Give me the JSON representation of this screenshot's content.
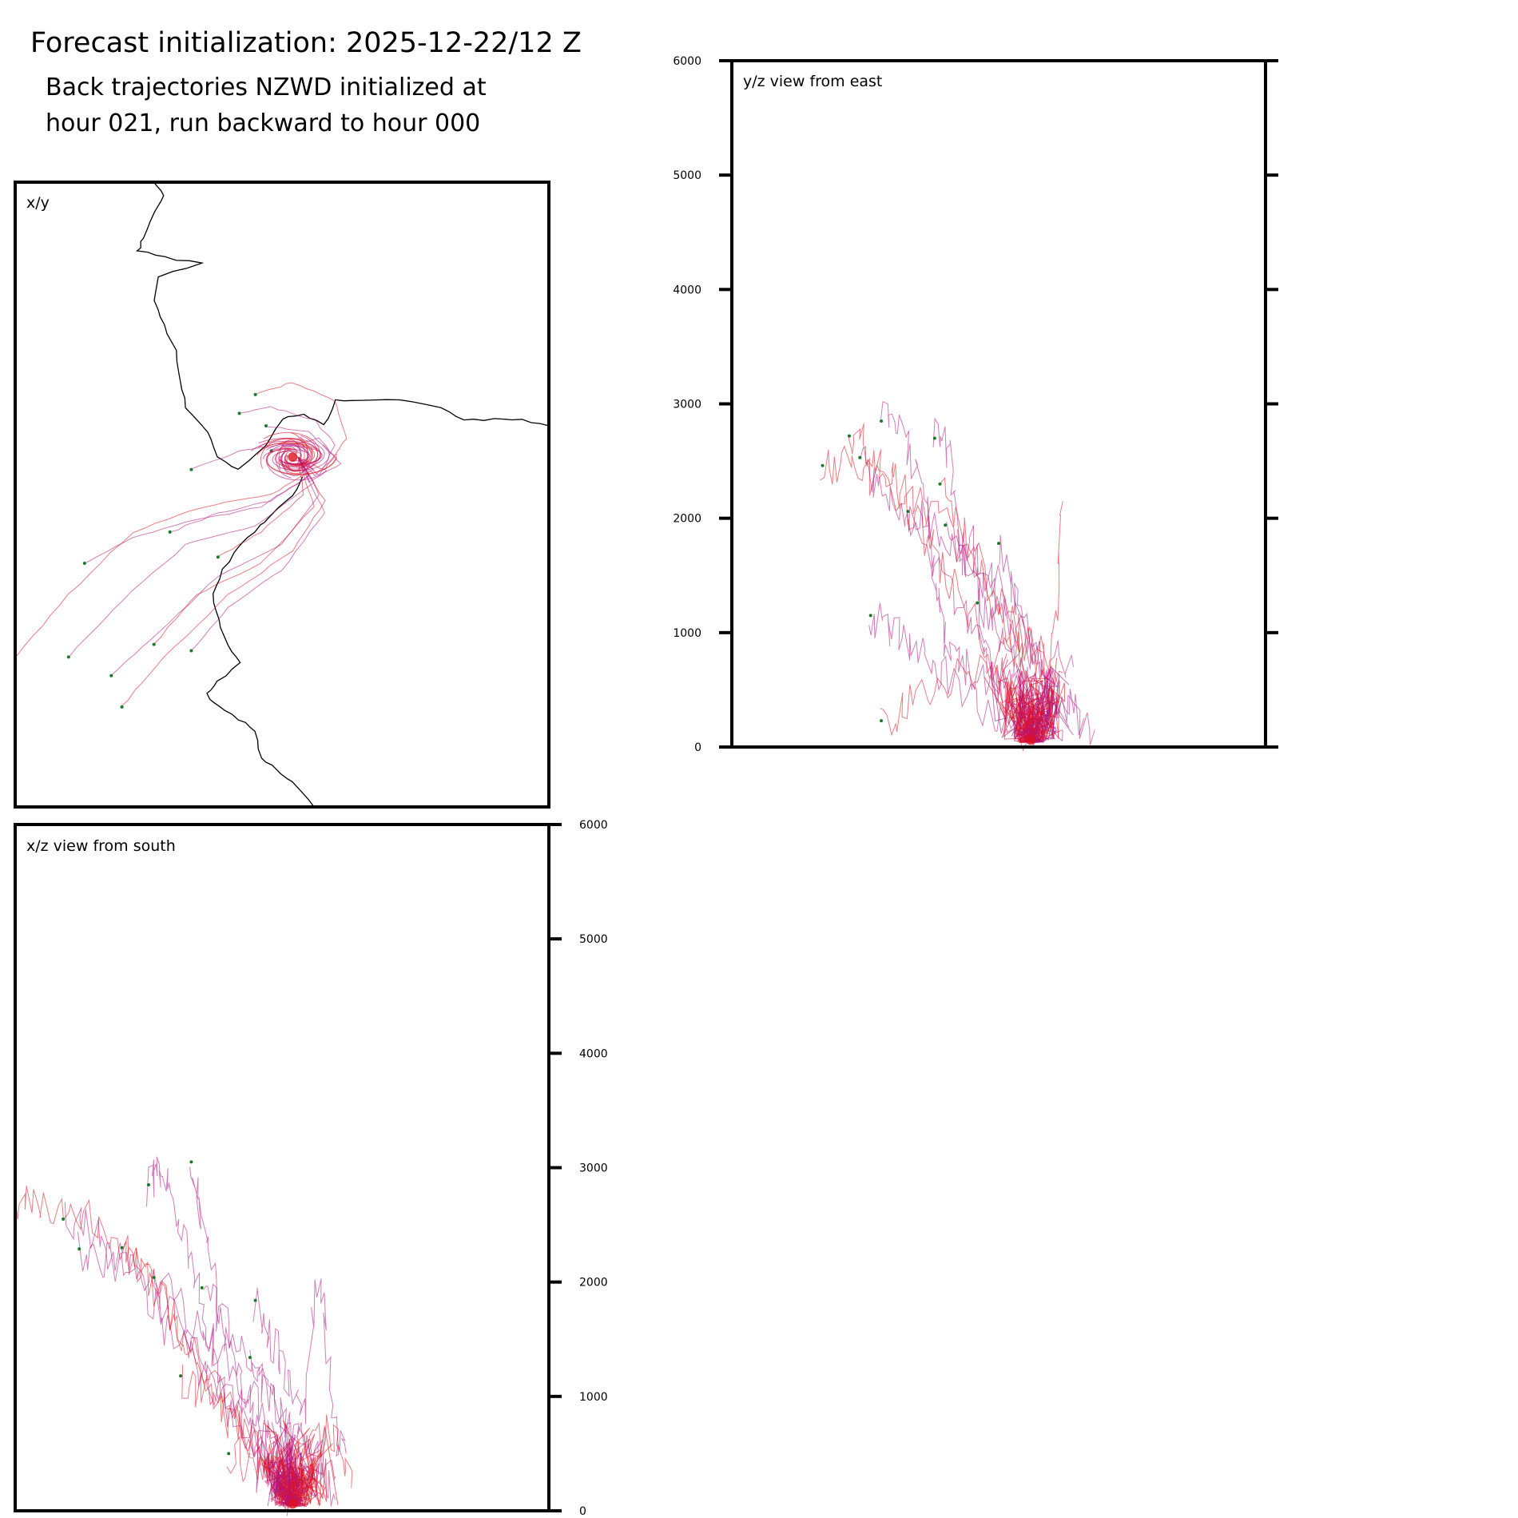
{
  "figure": {
    "title": "Forecast initialization: 2025-12-22/12 Z",
    "subtitle_line1": "Back trajectories NZWD initialized at",
    "subtitle_line2": "hour 021, run backward to hour 000",
    "colors": {
      "trajectory_primary": "#e0101e",
      "trajectory_secondary": "#b01480",
      "start_marker": "#1a7a2a",
      "axes": "#000000",
      "coastline": "#000000"
    }
  },
  "chart_data": [
    {
      "type": "line",
      "panel": "xy",
      "label": "x/y",
      "description_units": "map view",
      "source_point": [
        0.52,
        0.44
      ],
      "series": [
        {
          "name": "trajectory-1",
          "points": [
            [
              0.0,
              0.76
            ],
            [
              0.1,
              0.66
            ],
            [
              0.22,
              0.56
            ],
            [
              0.35,
              0.52
            ],
            [
              0.48,
              0.5
            ],
            [
              0.56,
              0.46
            ],
            [
              0.53,
              0.44
            ]
          ]
        },
        {
          "name": "trajectory-2",
          "points": [
            [
              0.1,
              0.76
            ],
            [
              0.2,
              0.67
            ],
            [
              0.32,
              0.58
            ],
            [
              0.45,
              0.55
            ],
            [
              0.56,
              0.48
            ],
            [
              0.53,
              0.44
            ]
          ]
        },
        {
          "name": "trajectory-3",
          "points": [
            [
              0.18,
              0.79
            ],
            [
              0.27,
              0.72
            ],
            [
              0.38,
              0.63
            ],
            [
              0.5,
              0.58
            ],
            [
              0.57,
              0.5
            ],
            [
              0.53,
              0.44
            ]
          ]
        },
        {
          "name": "trajectory-4",
          "points": [
            [
              0.2,
              0.84
            ],
            [
              0.28,
              0.76
            ],
            [
              0.4,
              0.66
            ],
            [
              0.52,
              0.59
            ],
            [
              0.58,
              0.51
            ],
            [
              0.53,
              0.44
            ]
          ]
        },
        {
          "name": "trajectory-5",
          "points": [
            [
              0.13,
              0.61
            ],
            [
              0.22,
              0.57
            ],
            [
              0.34,
              0.54
            ],
            [
              0.46,
              0.52
            ],
            [
              0.55,
              0.47
            ],
            [
              0.53,
              0.44
            ]
          ]
        },
        {
          "name": "trajectory-6",
          "points": [
            [
              0.29,
              0.56
            ],
            [
              0.38,
              0.53
            ],
            [
              0.48,
              0.51
            ],
            [
              0.55,
              0.47
            ],
            [
              0.53,
              0.44
            ]
          ]
        },
        {
          "name": "trajectory-7",
          "points": [
            [
              0.26,
              0.74
            ],
            [
              0.34,
              0.66
            ],
            [
              0.46,
              0.61
            ],
            [
              0.56,
              0.52
            ],
            [
              0.53,
              0.44
            ]
          ]
        },
        {
          "name": "trajectory-8",
          "points": [
            [
              0.33,
              0.75
            ],
            [
              0.4,
              0.68
            ],
            [
              0.5,
              0.62
            ],
            [
              0.58,
              0.53
            ],
            [
              0.53,
              0.44
            ]
          ]
        },
        {
          "name": "trajectory-9",
          "points": [
            [
              0.42,
              0.37
            ],
            [
              0.48,
              0.36
            ],
            [
              0.56,
              0.38
            ],
            [
              0.6,
              0.42
            ],
            [
              0.57,
              0.47
            ],
            [
              0.53,
              0.44
            ]
          ]
        },
        {
          "name": "trajectory-10",
          "points": [
            [
              0.45,
              0.34
            ],
            [
              0.52,
              0.32
            ],
            [
              0.6,
              0.35
            ],
            [
              0.62,
              0.41
            ],
            [
              0.58,
              0.46
            ],
            [
              0.53,
              0.44
            ]
          ]
        },
        {
          "name": "trajectory-11",
          "points": [
            [
              0.33,
              0.46
            ],
            [
              0.42,
              0.43
            ],
            [
              0.5,
              0.42
            ],
            [
              0.53,
              0.44
            ]
          ]
        },
        {
          "name": "trajectory-12",
          "points": [
            [
              0.47,
              0.39
            ],
            [
              0.55,
              0.4
            ],
            [
              0.6,
              0.44
            ],
            [
              0.56,
              0.47
            ],
            [
              0.53,
              0.44
            ]
          ]
        },
        {
          "name": "trajectory-13",
          "points": [
            [
              0.38,
              0.6
            ],
            [
              0.46,
              0.56
            ],
            [
              0.54,
              0.5
            ],
            [
              0.53,
              0.44
            ]
          ]
        },
        {
          "name": "trajectory-14",
          "points": [
            [
              0.48,
              0.43
            ],
            [
              0.57,
              0.41
            ],
            [
              0.61,
              0.45
            ],
            [
              0.55,
              0.48
            ],
            [
              0.53,
              0.44
            ]
          ]
        }
      ]
    },
    {
      "type": "line",
      "panel": "yz",
      "label": "y/z view from east",
      "ylim": [
        0,
        6000
      ],
      "yticks": [
        0,
        1000,
        2000,
        3000,
        4000,
        5000,
        6000
      ],
      "series": [
        {
          "name": "trajectory-1",
          "x": [
            0.17,
            0.22,
            0.28,
            0.36,
            0.44,
            0.5,
            0.55,
            0.57
          ],
          "y": [
            2460,
            2450,
            2300,
            2100,
            1700,
            1200,
            600,
            100
          ]
        },
        {
          "name": "trajectory-2",
          "x": [
            0.24,
            0.28,
            0.33,
            0.4,
            0.45,
            0.52,
            0.57
          ],
          "y": [
            2530,
            2300,
            1900,
            1500,
            1000,
            500,
            80
          ]
        },
        {
          "name": "trajectory-3",
          "x": [
            0.28,
            0.32,
            0.36,
            0.38,
            0.4,
            0.44,
            0.5,
            0.56
          ],
          "y": [
            2850,
            2700,
            2200,
            1500,
            900,
            700,
            400,
            60
          ]
        },
        {
          "name": "trajectory-4",
          "x": [
            0.22,
            0.26,
            0.3,
            0.33,
            0.38,
            0.44,
            0.5,
            0.56
          ],
          "y": [
            2720,
            2600,
            2400,
            2100,
            1700,
            1200,
            600,
            80
          ]
        },
        {
          "name": "trajectory-5",
          "x": [
            0.38,
            0.41,
            0.43,
            0.45,
            0.47,
            0.5,
            0.55
          ],
          "y": [
            2700,
            2600,
            1500,
            1900,
            900,
            500,
            100
          ]
        },
        {
          "name": "trajectory-6",
          "x": [
            0.26,
            0.3,
            0.35,
            0.4,
            0.48,
            0.57
          ],
          "y": [
            1150,
            980,
            800,
            600,
            300,
            90
          ]
        },
        {
          "name": "trajectory-7",
          "x": [
            0.39,
            0.44,
            0.5,
            0.55,
            0.6,
            0.62
          ],
          "y": [
            2300,
            1800,
            1300,
            900,
            700,
            2150
          ]
        },
        {
          "name": "trajectory-8",
          "x": [
            0.33,
            0.38,
            0.45,
            0.52,
            0.58,
            0.64
          ],
          "y": [
            2060,
            1900,
            1700,
            1300,
            800,
            700
          ]
        },
        {
          "name": "trajectory-9",
          "x": [
            0.4,
            0.45,
            0.5,
            0.55,
            0.6,
            0.66
          ],
          "y": [
            1940,
            1600,
            1300,
            900,
            500,
            250
          ]
        },
        {
          "name": "trajectory-10",
          "x": [
            0.28,
            0.34,
            0.42,
            0.5,
            0.56,
            0.62
          ],
          "y": [
            230,
            400,
            600,
            800,
            900,
            650
          ]
        },
        {
          "name": "trajectory-11",
          "x": [
            0.46,
            0.5,
            0.54,
            0.58,
            0.62
          ],
          "y": [
            1260,
            1000,
            700,
            400,
            150
          ]
        },
        {
          "name": "trajectory-12",
          "x": [
            0.5,
            0.53,
            0.56,
            0.59,
            0.62,
            0.68
          ],
          "y": [
            1780,
            1300,
            900,
            500,
            300,
            150
          ]
        }
      ]
    },
    {
      "type": "line",
      "panel": "xz",
      "label": "x/z view from south",
      "ylim": [
        0,
        6000
      ],
      "yticks": [
        0,
        1000,
        2000,
        3000,
        4000,
        5000,
        6000
      ],
      "series": [
        {
          "name": "trajectory-1",
          "x": [
            0.0,
            0.05,
            0.12,
            0.2,
            0.28,
            0.36,
            0.44,
            0.52
          ],
          "y": [
            2720,
            2700,
            2600,
            2300,
            1800,
            1200,
            600,
            80
          ]
        },
        {
          "name": "trajectory-2",
          "x": [
            0.09,
            0.14,
            0.2,
            0.26,
            0.34,
            0.42,
            0.5
          ],
          "y": [
            2550,
            2450,
            2200,
            1900,
            1400,
            900,
            100
          ]
        },
        {
          "name": "trajectory-3",
          "x": [
            0.12,
            0.18,
            0.24,
            0.3,
            0.38,
            0.46,
            0.52
          ],
          "y": [
            2290,
            2200,
            1950,
            1500,
            1000,
            500,
            60
          ]
        },
        {
          "name": "trajectory-4",
          "x": [
            0.2,
            0.24,
            0.28,
            0.32,
            0.38,
            0.44,
            0.52
          ],
          "y": [
            2300,
            2100,
            1800,
            1500,
            1000,
            600,
            80
          ]
        },
        {
          "name": "trajectory-5",
          "x": [
            0.25,
            0.27,
            0.3,
            0.33,
            0.36,
            0.4,
            0.46,
            0.52
          ],
          "y": [
            2850,
            2950,
            2700,
            2200,
            1600,
            1000,
            500,
            60
          ]
        },
        {
          "name": "trajectory-6",
          "x": [
            0.33,
            0.35,
            0.38,
            0.41,
            0.44,
            0.48,
            0.52
          ],
          "y": [
            3050,
            2500,
            1800,
            1300,
            900,
            500,
            90
          ]
        },
        {
          "name": "trajectory-7",
          "x": [
            0.31,
            0.36,
            0.4,
            0.44,
            0.48,
            0.52
          ],
          "y": [
            1180,
            1000,
            800,
            600,
            300,
            60
          ]
        },
        {
          "name": "trajectory-8",
          "x": [
            0.35,
            0.4,
            0.45,
            0.5,
            0.55,
            0.6
          ],
          "y": [
            1950,
            1600,
            1200,
            800,
            500,
            300
          ]
        },
        {
          "name": "trajectory-9",
          "x": [
            0.45,
            0.48,
            0.51,
            0.54,
            0.57,
            0.6,
            0.62
          ],
          "y": [
            1840,
            1500,
            1100,
            800,
            2150,
            700,
            500
          ]
        },
        {
          "name": "trajectory-10",
          "x": [
            0.4,
            0.45,
            0.5,
            0.55,
            0.6,
            0.63
          ],
          "y": [
            500,
            400,
            300,
            600,
            700,
            200
          ]
        },
        {
          "name": "trajectory-11",
          "x": [
            0.26,
            0.32,
            0.38,
            0.44,
            0.5,
            0.55
          ],
          "y": [
            2040,
            1700,
            1400,
            1000,
            600,
            100
          ]
        },
        {
          "name": "trajectory-12",
          "x": [
            0.44,
            0.48,
            0.52,
            0.56,
            0.6
          ],
          "y": [
            1340,
            1000,
            700,
            400,
            100
          ]
        }
      ]
    }
  ],
  "coastline": {
    "main": [
      [
        0.26,
        0.0
      ],
      [
        0.28,
        0.02
      ],
      [
        0.26,
        0.05
      ],
      [
        0.24,
        0.09
      ],
      [
        0.23,
        0.11
      ],
      [
        0.28,
        0.12
      ],
      [
        0.35,
        0.13
      ],
      [
        0.27,
        0.15
      ],
      [
        0.26,
        0.19
      ],
      [
        0.28,
        0.23
      ],
      [
        0.3,
        0.27
      ],
      [
        0.31,
        0.32
      ],
      [
        0.32,
        0.36
      ],
      [
        0.36,
        0.4
      ],
      [
        0.38,
        0.44
      ],
      [
        0.42,
        0.46
      ],
      [
        0.47,
        0.42
      ],
      [
        0.5,
        0.38
      ],
      [
        0.54,
        0.37
      ],
      [
        0.58,
        0.39
      ],
      [
        0.6,
        0.35
      ],
      [
        0.65,
        0.35
      ],
      [
        0.72,
        0.35
      ],
      [
        0.8,
        0.36
      ],
      [
        0.84,
        0.38
      ],
      [
        0.9,
        0.38
      ],
      [
        0.95,
        0.38
      ],
      [
        1.0,
        0.39
      ]
    ],
    "lower": [
      [
        0.54,
        0.47
      ],
      [
        0.52,
        0.5
      ],
      [
        0.48,
        0.53
      ],
      [
        0.46,
        0.55
      ],
      [
        0.42,
        0.58
      ],
      [
        0.39,
        0.62
      ],
      [
        0.37,
        0.66
      ],
      [
        0.38,
        0.7
      ],
      [
        0.4,
        0.74
      ],
      [
        0.42,
        0.77
      ],
      [
        0.38,
        0.8
      ],
      [
        0.36,
        0.82
      ],
      [
        0.38,
        0.84
      ],
      [
        0.42,
        0.86
      ],
      [
        0.45,
        0.88
      ],
      [
        0.46,
        0.92
      ],
      [
        0.49,
        0.94
      ],
      [
        0.52,
        0.96
      ],
      [
        0.56,
        1.0
      ]
    ]
  }
}
